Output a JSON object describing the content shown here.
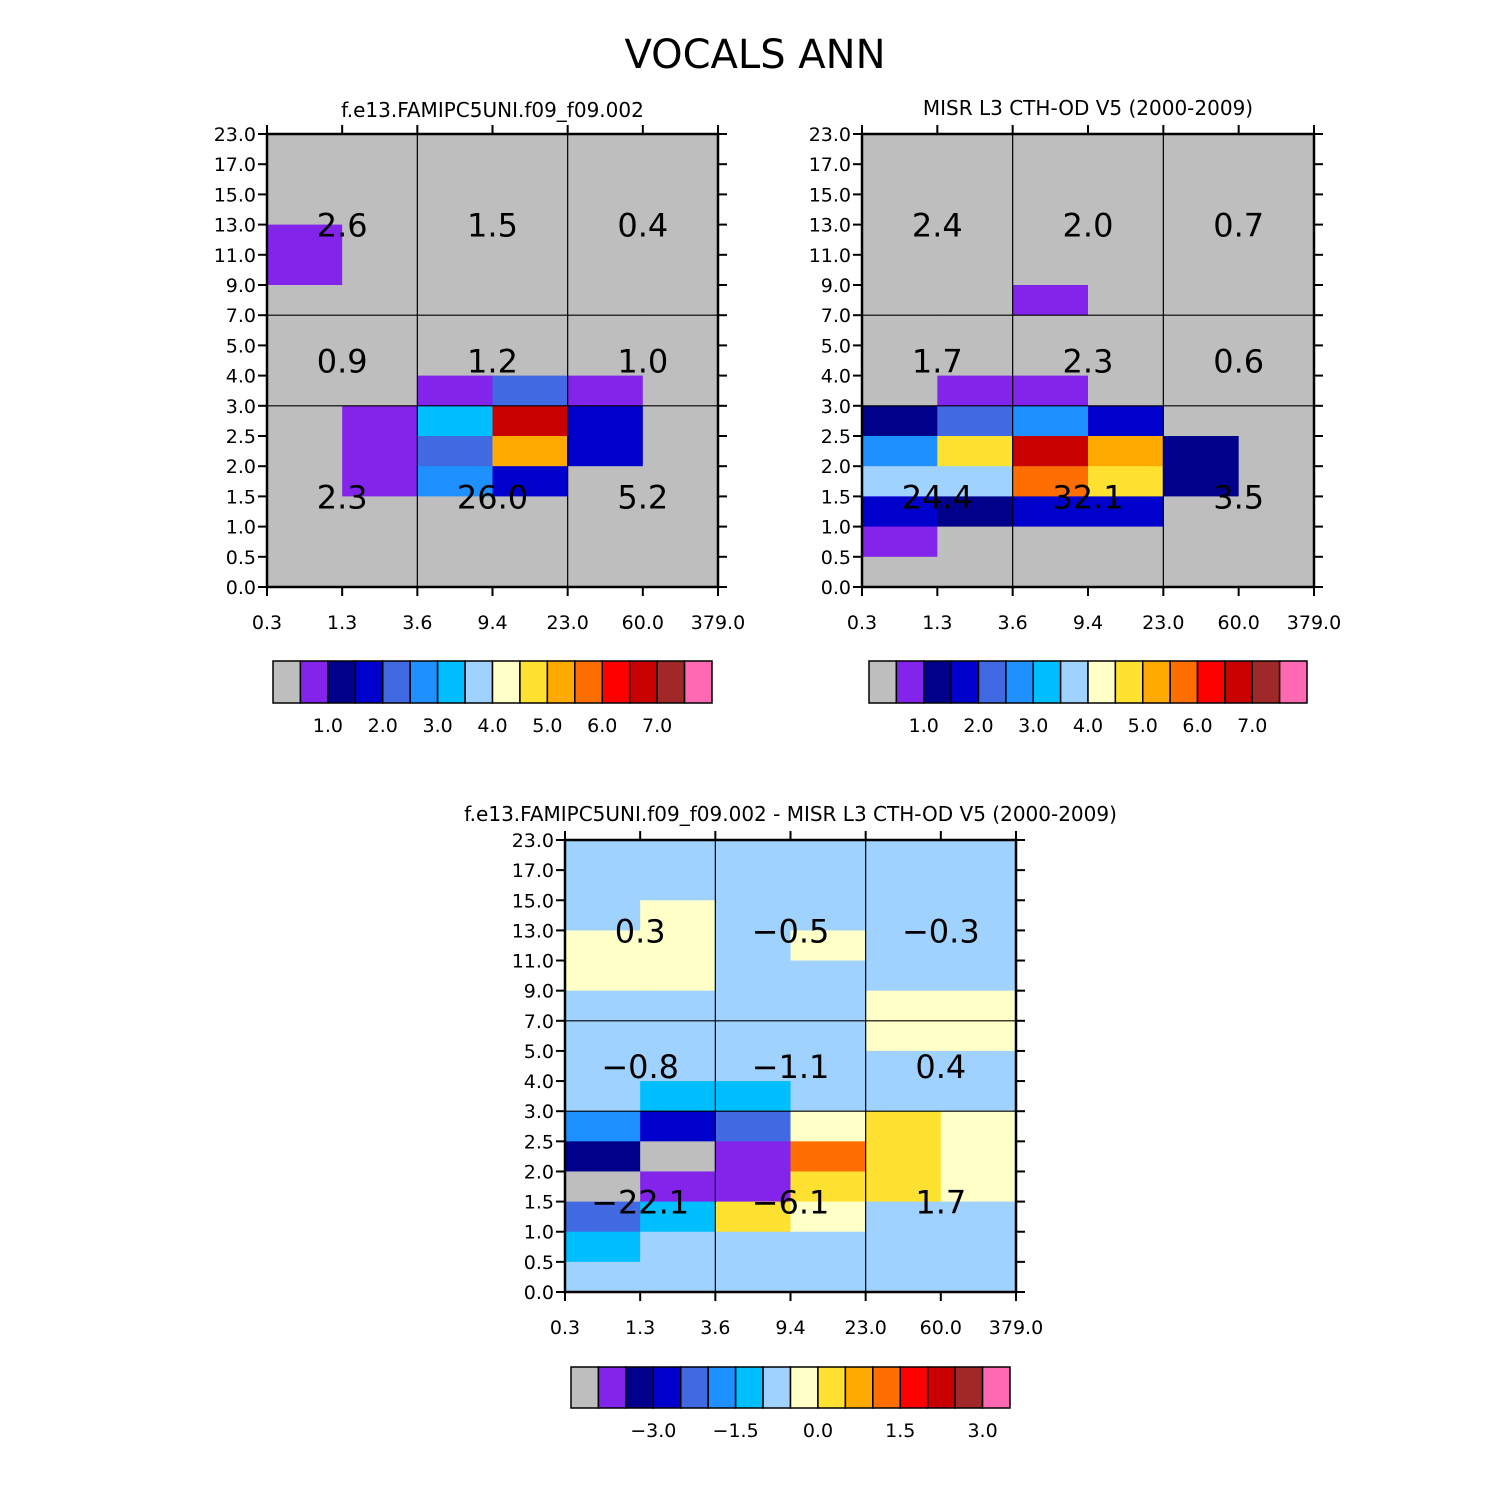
{
  "title": "VOCALS ANN",
  "colors": {
    "palette": [
      "#bebebe",
      "#8224ea",
      "#00008b",
      "#0000cd",
      "#4169e1",
      "#1e90ff",
      "#00bfff",
      "#a0d2ff",
      "#ffffc8",
      "#ffe132",
      "#ffaa00",
      "#ff6e00",
      "#ff0000",
      "#c80000",
      "#a02828",
      "#ff69b4"
    ],
    "bin_sentinel_color": "#bebebe"
  },
  "chart_data": [
    {
      "type": "heatmap",
      "title": "f.e13.FAMIPC5UNI.f09_f09.002",
      "x_ticks": [
        "0.3",
        "1.3",
        "3.6",
        "9.4",
        "23.0",
        "60.0",
        "379.0"
      ],
      "y_ticks": [
        "0.0",
        "0.5",
        "1.0",
        "1.5",
        "2.0",
        "2.5",
        "3.0",
        "4.0",
        "5.0",
        "7.0",
        "9.0",
        "11.0",
        "13.0",
        "15.0",
        "17.0",
        "23.0"
      ],
      "value_rows_top_to_bottom": [
        [
          0,
          0,
          0,
          0,
          0,
          0
        ],
        [
          0,
          0,
          0,
          0,
          0,
          0
        ],
        [
          0,
          0,
          0,
          0,
          0,
          0
        ],
        [
          1,
          0,
          0,
          0,
          0,
          0
        ],
        [
          1,
          0,
          0,
          0,
          0,
          0
        ],
        [
          0,
          0,
          0,
          0,
          0,
          0
        ],
        [
          0,
          0,
          0,
          0,
          0,
          0
        ],
        [
          0,
          0,
          0,
          0,
          0,
          0
        ],
        [
          0,
          0,
          1,
          4,
          1,
          0
        ],
        [
          0,
          1,
          6,
          13,
          3,
          0
        ],
        [
          0,
          1,
          4,
          10,
          3,
          0
        ],
        [
          0,
          1,
          5,
          3,
          0,
          0
        ],
        [
          0,
          0,
          0,
          0,
          0,
          0
        ],
        [
          0,
          0,
          0,
          0,
          0,
          0
        ],
        [
          0,
          0,
          0,
          0,
          0,
          0
        ]
      ],
      "region_totals": [
        {
          "text": "2.6",
          "col": 0,
          "row": 0
        },
        {
          "text": "1.5",
          "col": 1,
          "row": 0
        },
        {
          "text": "0.4",
          "col": 2,
          "row": 0
        },
        {
          "text": "0.9",
          "col": 0,
          "row": 1
        },
        {
          "text": "1.2",
          "col": 1,
          "row": 1
        },
        {
          "text": "1.0",
          "col": 2,
          "row": 1
        },
        {
          "text": "2.3",
          "col": 0,
          "row": 2
        },
        {
          "text": "26.0",
          "col": 1,
          "row": 2
        },
        {
          "text": "5.2",
          "col": 2,
          "row": 2
        }
      ],
      "colorbar_ticks": [
        "1.0",
        "2.0",
        "3.0",
        "4.0",
        "5.0",
        "6.0",
        "7.0"
      ],
      "colorbar_tick_after_box": [
        1,
        3,
        5,
        7,
        9,
        11,
        13
      ]
    },
    {
      "type": "heatmap",
      "title": "MISR L3 CTH-OD V5 (2000-2009)",
      "x_ticks": [
        "0.3",
        "1.3",
        "3.6",
        "9.4",
        "23.0",
        "60.0",
        "379.0"
      ],
      "y_ticks": [
        "0.0",
        "0.5",
        "1.0",
        "1.5",
        "2.0",
        "2.5",
        "3.0",
        "4.0",
        "5.0",
        "7.0",
        "9.0",
        "11.0",
        "13.0",
        "15.0",
        "17.0",
        "23.0"
      ],
      "value_rows_top_to_bottom": [
        [
          0,
          0,
          0,
          0,
          0,
          0
        ],
        [
          0,
          0,
          0,
          0,
          0,
          0
        ],
        [
          0,
          0,
          0,
          0,
          0,
          0
        ],
        [
          0,
          0,
          0,
          0,
          0,
          0
        ],
        [
          0,
          0,
          0,
          0,
          0,
          0
        ],
        [
          0,
          0,
          1,
          0,
          0,
          0
        ],
        [
          0,
          0,
          0,
          0,
          0,
          0
        ],
        [
          0,
          0,
          0,
          0,
          0,
          0
        ],
        [
          0,
          1,
          1,
          0,
          0,
          0
        ],
        [
          2,
          4,
          5,
          3,
          0,
          0
        ],
        [
          5,
          9,
          13,
          10,
          2,
          0
        ],
        [
          7,
          7,
          11,
          9,
          2,
          0
        ],
        [
          3,
          2,
          3,
          3,
          0,
          0
        ],
        [
          1,
          0,
          0,
          0,
          0,
          0
        ],
        [
          0,
          0,
          0,
          0,
          0,
          0
        ]
      ],
      "region_totals": [
        {
          "text": "2.4",
          "col": 0,
          "row": 0
        },
        {
          "text": "2.0",
          "col": 1,
          "row": 0
        },
        {
          "text": "0.7",
          "col": 2,
          "row": 0
        },
        {
          "text": "1.7",
          "col": 0,
          "row": 1
        },
        {
          "text": "2.3",
          "col": 1,
          "row": 1
        },
        {
          "text": "0.6",
          "col": 2,
          "row": 1
        },
        {
          "text": "24.4",
          "col": 0,
          "row": 2
        },
        {
          "text": "32.1",
          "col": 1,
          "row": 2
        },
        {
          "text": "3.5",
          "col": 2,
          "row": 2
        }
      ],
      "colorbar_ticks": [
        "1.0",
        "2.0",
        "3.0",
        "4.0",
        "5.0",
        "6.0",
        "7.0"
      ],
      "colorbar_tick_after_box": [
        1,
        3,
        5,
        7,
        9,
        11,
        13
      ]
    },
    {
      "type": "heatmap",
      "title": "f.e13.FAMIPC5UNI.f09_f09.002 - MISR L3 CTH-OD V5 (2000-2009)",
      "x_ticks": [
        "0.3",
        "1.3",
        "3.6",
        "9.4",
        "23.0",
        "60.0",
        "379.0"
      ],
      "y_ticks": [
        "0.0",
        "0.5",
        "1.0",
        "1.5",
        "2.0",
        "2.5",
        "3.0",
        "4.0",
        "5.0",
        "7.0",
        "9.0",
        "11.0",
        "13.0",
        "15.0",
        "17.0",
        "23.0"
      ],
      "value_rows_top_to_bottom": [
        [
          7,
          7,
          7,
          7,
          7,
          7
        ],
        [
          7,
          7,
          7,
          7,
          7,
          7
        ],
        [
          7,
          8,
          7,
          7,
          7,
          7
        ],
        [
          8,
          8,
          7,
          8,
          7,
          7
        ],
        [
          8,
          8,
          7,
          7,
          7,
          7
        ],
        [
          7,
          7,
          7,
          7,
          8,
          8
        ],
        [
          7,
          7,
          7,
          7,
          8,
          8
        ],
        [
          7,
          7,
          7,
          7,
          7,
          7
        ],
        [
          7,
          6,
          6,
          7,
          7,
          7
        ],
        [
          5,
          3,
          4,
          8,
          9,
          8
        ],
        [
          2,
          0,
          1,
          11,
          9,
          8
        ],
        [
          0,
          1,
          1,
          9,
          9,
          8
        ],
        [
          4,
          6,
          9,
          8,
          7,
          7
        ],
        [
          6,
          7,
          7,
          7,
          7,
          7
        ],
        [
          7,
          7,
          7,
          7,
          7,
          7
        ]
      ],
      "region_totals": [
        {
          "text": "0.3",
          "col": 0,
          "row": 0
        },
        {
          "text": "−0.5",
          "col": 1,
          "row": 0
        },
        {
          "text": "−0.3",
          "col": 2,
          "row": 0
        },
        {
          "text": "−0.8",
          "col": 0,
          "row": 1
        },
        {
          "text": "−1.1",
          "col": 1,
          "row": 1
        },
        {
          "text": "0.4",
          "col": 2,
          "row": 1
        },
        {
          "text": "−22.1",
          "col": 0,
          "row": 2
        },
        {
          "text": "−6.1",
          "col": 1,
          "row": 2
        },
        {
          "text": "1.7",
          "col": 2,
          "row": 2
        }
      ],
      "colorbar_ticks": [
        "−3.0",
        "−1.5",
        "0.0",
        "1.5",
        "3.0"
      ],
      "colorbar_tick_after_box": [
        2,
        5,
        8,
        11,
        14
      ]
    }
  ]
}
